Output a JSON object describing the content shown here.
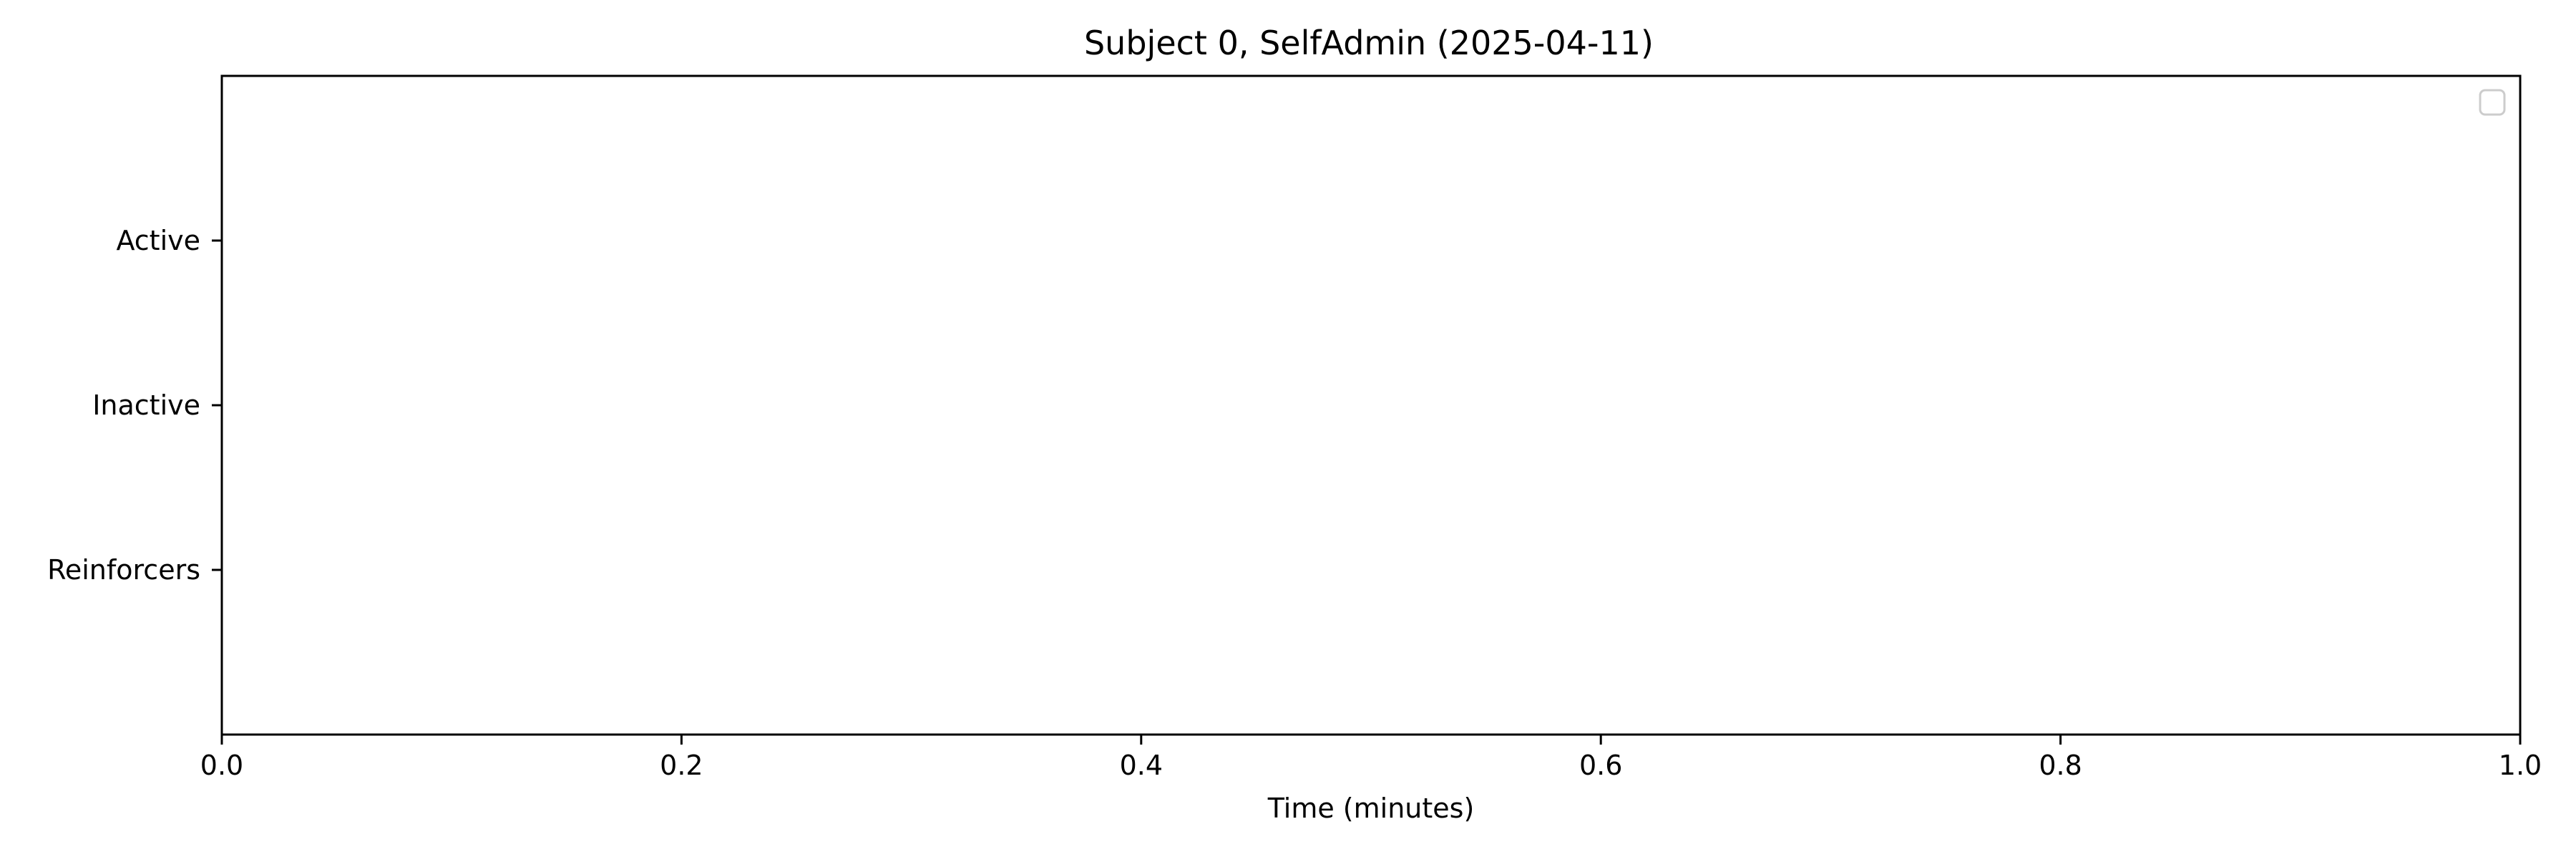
{
  "chart_data": {
    "type": "scatter",
    "title": "Subject 0, SelfAdmin (2025-04-11)",
    "xlabel": "Time (minutes)",
    "ylabel": "",
    "xlim": [
      0.0,
      1.0
    ],
    "x_ticks": [
      "0.0",
      "0.2",
      "0.4",
      "0.6",
      "0.8",
      "1.0"
    ],
    "categories": [
      "Active",
      "Inactive",
      "Reinforcers"
    ],
    "series": [],
    "grid": false,
    "legend": {
      "placement": "top-right",
      "entries": []
    }
  }
}
